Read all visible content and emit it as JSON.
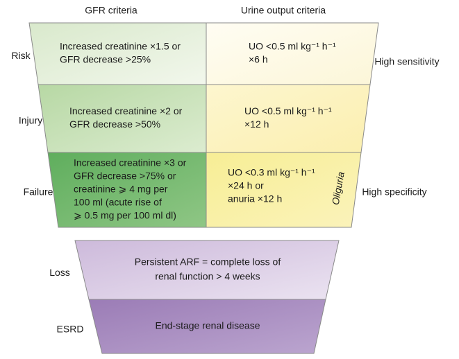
{
  "headers": [
    "GFR criteria",
    "Urine output criteria"
  ],
  "stages": [
    {
      "label": "Risk",
      "gfr": [
        "Increased creatinine ×1.5 or",
        "GFR decrease >25%"
      ],
      "uo": [
        "UO <0.5 ml kg⁻¹ h⁻¹",
        "×6 h"
      ]
    },
    {
      "label": "Injury",
      "gfr": [
        "Increased creatinine ×2 or",
        "GFR decrease >50%"
      ],
      "uo": [
        "UO <0.5 ml kg⁻¹ h⁻¹",
        "×12 h"
      ]
    },
    {
      "label": "Failure",
      "gfr": [
        "Increased creatinine ×3 or",
        "GFR decrease >75% or",
        "creatinine ⩾ 4 mg per",
        "100 ml (acute rise of",
        "⩾ 0.5 mg per 100 ml dl)"
      ],
      "uo": [
        "UO <0.3 ml kg⁻¹ h⁻¹",
        "×24 h or",
        "anuria ×12 h"
      ]
    }
  ],
  "oliguria": "Oliguria",
  "sensitivity": "High sensitivity",
  "specificity": "High specificity",
  "outcomes": [
    {
      "label": "Loss",
      "text": [
        "Persistent ARF = complete loss of",
        "renal function > 4 weeks"
      ]
    },
    {
      "label": "ESRD",
      "text": [
        "End-stage renal disease"
      ]
    }
  ]
}
